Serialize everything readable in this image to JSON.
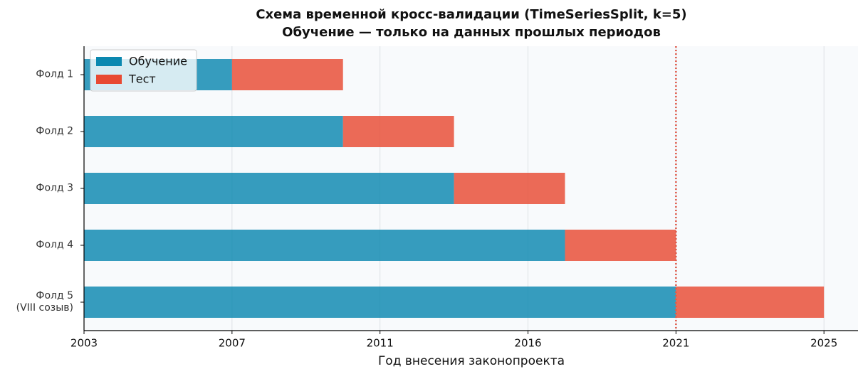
{
  "chart_data": {
    "type": "stacked_barh",
    "title": "Схема временной кросс-валидации (TimeSeriesSplit, k=5)",
    "subtitle": "Обучение — только на данных прошлых периодов",
    "xlabel": "Год внесения законопроекта",
    "categories": [
      "Фолд 1",
      "Фолд 2",
      "Фолд 3",
      "Фолд 4",
      "Фолд 5\n(VIII созыв)"
    ],
    "series": [
      {
        "name": "Обучение",
        "color": "#0b88b0",
        "values": [
          1,
          1.75,
          2.5,
          3.25,
          4
        ]
      },
      {
        "name": "Тест",
        "color": "#e84a32",
        "values": [
          0.75,
          0.75,
          0.75,
          0.75,
          1
        ]
      }
    ],
    "xlim": [
      0,
      5.23
    ],
    "xticks": [
      {
        "value": 0,
        "label": "2003"
      },
      {
        "value": 1,
        "label": "2007"
      },
      {
        "value": 2,
        "label": "2011"
      },
      {
        "value": 3,
        "label": "2016"
      },
      {
        "value": 4,
        "label": "2021"
      },
      {
        "value": 5,
        "label": "2025"
      }
    ],
    "vline": {
      "value": 4,
      "color": "#e05a4a"
    },
    "grid": true,
    "legend": "upper left"
  }
}
